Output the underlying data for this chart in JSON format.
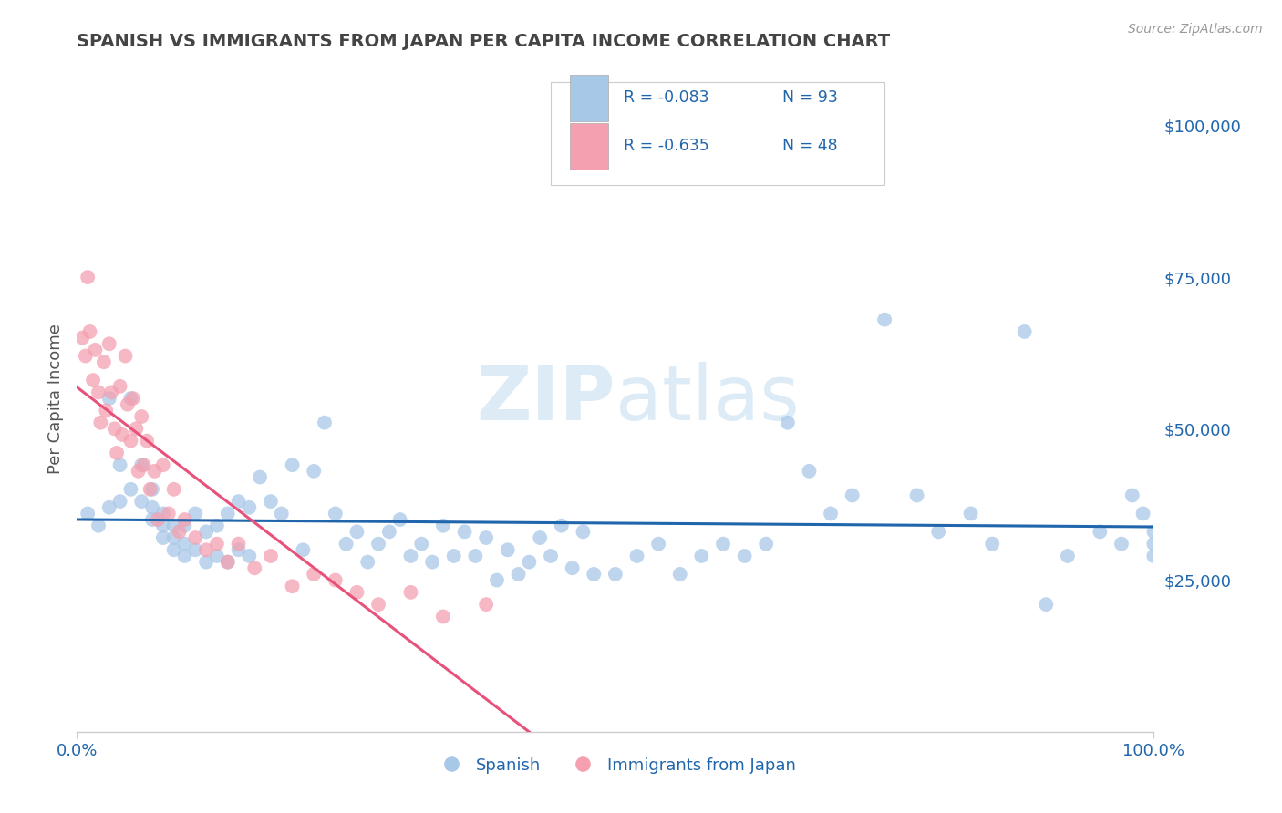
{
  "title": "SPANISH VS IMMIGRANTS FROM JAPAN PER CAPITA INCOME CORRELATION CHART",
  "source": "Source: ZipAtlas.com",
  "ylabel": "Per Capita Income",
  "xlim": [
    0,
    1.0
  ],
  "ylim": [
    0,
    110000
  ],
  "yticks": [
    0,
    25000,
    50000,
    75000,
    100000
  ],
  "ytick_labels": [
    "",
    "$25,000",
    "$50,000",
    "$75,000",
    "$100,000"
  ],
  "legend_r1": "R = -0.083",
  "legend_n1": "N = 93",
  "legend_r2": "R = -0.635",
  "legend_n2": "N = 48",
  "legend_label1": "Spanish",
  "legend_label2": "Immigrants from Japan",
  "color_blue": "#a8c8e8",
  "color_pink": "#f4a0b0",
  "color_blue_line": "#2166ac",
  "color_pink_line": "#e8517a",
  "color_legend_text": "#2166ac",
  "color_axis_label": "#2166ac",
  "color_title": "#444444",
  "watermark_zip": "ZIP",
  "watermark_atlas": "atlas",
  "background": "#ffffff",
  "grid_color": "#cccccc",
  "spanish_x": [
    0.01,
    0.02,
    0.03,
    0.03,
    0.04,
    0.04,
    0.05,
    0.05,
    0.06,
    0.06,
    0.07,
    0.07,
    0.07,
    0.08,
    0.08,
    0.08,
    0.09,
    0.09,
    0.09,
    0.1,
    0.1,
    0.1,
    0.11,
    0.11,
    0.12,
    0.12,
    0.13,
    0.13,
    0.14,
    0.14,
    0.15,
    0.15,
    0.16,
    0.16,
    0.17,
    0.18,
    0.19,
    0.2,
    0.21,
    0.22,
    0.23,
    0.24,
    0.25,
    0.26,
    0.27,
    0.28,
    0.29,
    0.3,
    0.31,
    0.32,
    0.33,
    0.34,
    0.35,
    0.36,
    0.37,
    0.38,
    0.39,
    0.4,
    0.41,
    0.42,
    0.43,
    0.44,
    0.45,
    0.46,
    0.47,
    0.48,
    0.5,
    0.52,
    0.54,
    0.56,
    0.58,
    0.6,
    0.62,
    0.64,
    0.66,
    0.68,
    0.7,
    0.72,
    0.75,
    0.78,
    0.8,
    0.83,
    0.85,
    0.88,
    0.9,
    0.92,
    0.95,
    0.97,
    0.98,
    0.99,
    1.0,
    1.0,
    1.0
  ],
  "spanish_y": [
    36000,
    34000,
    55000,
    37000,
    44000,
    38000,
    55000,
    40000,
    38000,
    44000,
    40000,
    37000,
    35000,
    36000,
    34000,
    32000,
    34000,
    32000,
    30000,
    34000,
    31000,
    29000,
    36000,
    30000,
    33000,
    28000,
    34000,
    29000,
    36000,
    28000,
    38000,
    30000,
    37000,
    29000,
    42000,
    38000,
    36000,
    44000,
    30000,
    43000,
    51000,
    36000,
    31000,
    33000,
    28000,
    31000,
    33000,
    35000,
    29000,
    31000,
    28000,
    34000,
    29000,
    33000,
    29000,
    32000,
    25000,
    30000,
    26000,
    28000,
    32000,
    29000,
    34000,
    27000,
    33000,
    26000,
    26000,
    29000,
    31000,
    26000,
    29000,
    31000,
    29000,
    31000,
    51000,
    43000,
    36000,
    39000,
    68000,
    39000,
    33000,
    36000,
    31000,
    66000,
    21000,
    29000,
    33000,
    31000,
    39000,
    36000,
    33000,
    29000,
    31000
  ],
  "japan_x": [
    0.005,
    0.008,
    0.01,
    0.012,
    0.015,
    0.017,
    0.02,
    0.022,
    0.025,
    0.027,
    0.03,
    0.032,
    0.035,
    0.037,
    0.04,
    0.042,
    0.045,
    0.047,
    0.05,
    0.052,
    0.055,
    0.057,
    0.06,
    0.062,
    0.065,
    0.068,
    0.072,
    0.075,
    0.08,
    0.085,
    0.09,
    0.095,
    0.1,
    0.11,
    0.12,
    0.13,
    0.14,
    0.15,
    0.165,
    0.18,
    0.2,
    0.22,
    0.24,
    0.26,
    0.28,
    0.31,
    0.34,
    0.38
  ],
  "japan_y": [
    65000,
    62000,
    75000,
    66000,
    58000,
    63000,
    56000,
    51000,
    61000,
    53000,
    64000,
    56000,
    50000,
    46000,
    57000,
    49000,
    62000,
    54000,
    48000,
    55000,
    50000,
    43000,
    52000,
    44000,
    48000,
    40000,
    43000,
    35000,
    44000,
    36000,
    40000,
    33000,
    35000,
    32000,
    30000,
    31000,
    28000,
    31000,
    27000,
    29000,
    24000,
    26000,
    25000,
    23000,
    21000,
    23000,
    19000,
    21000
  ]
}
